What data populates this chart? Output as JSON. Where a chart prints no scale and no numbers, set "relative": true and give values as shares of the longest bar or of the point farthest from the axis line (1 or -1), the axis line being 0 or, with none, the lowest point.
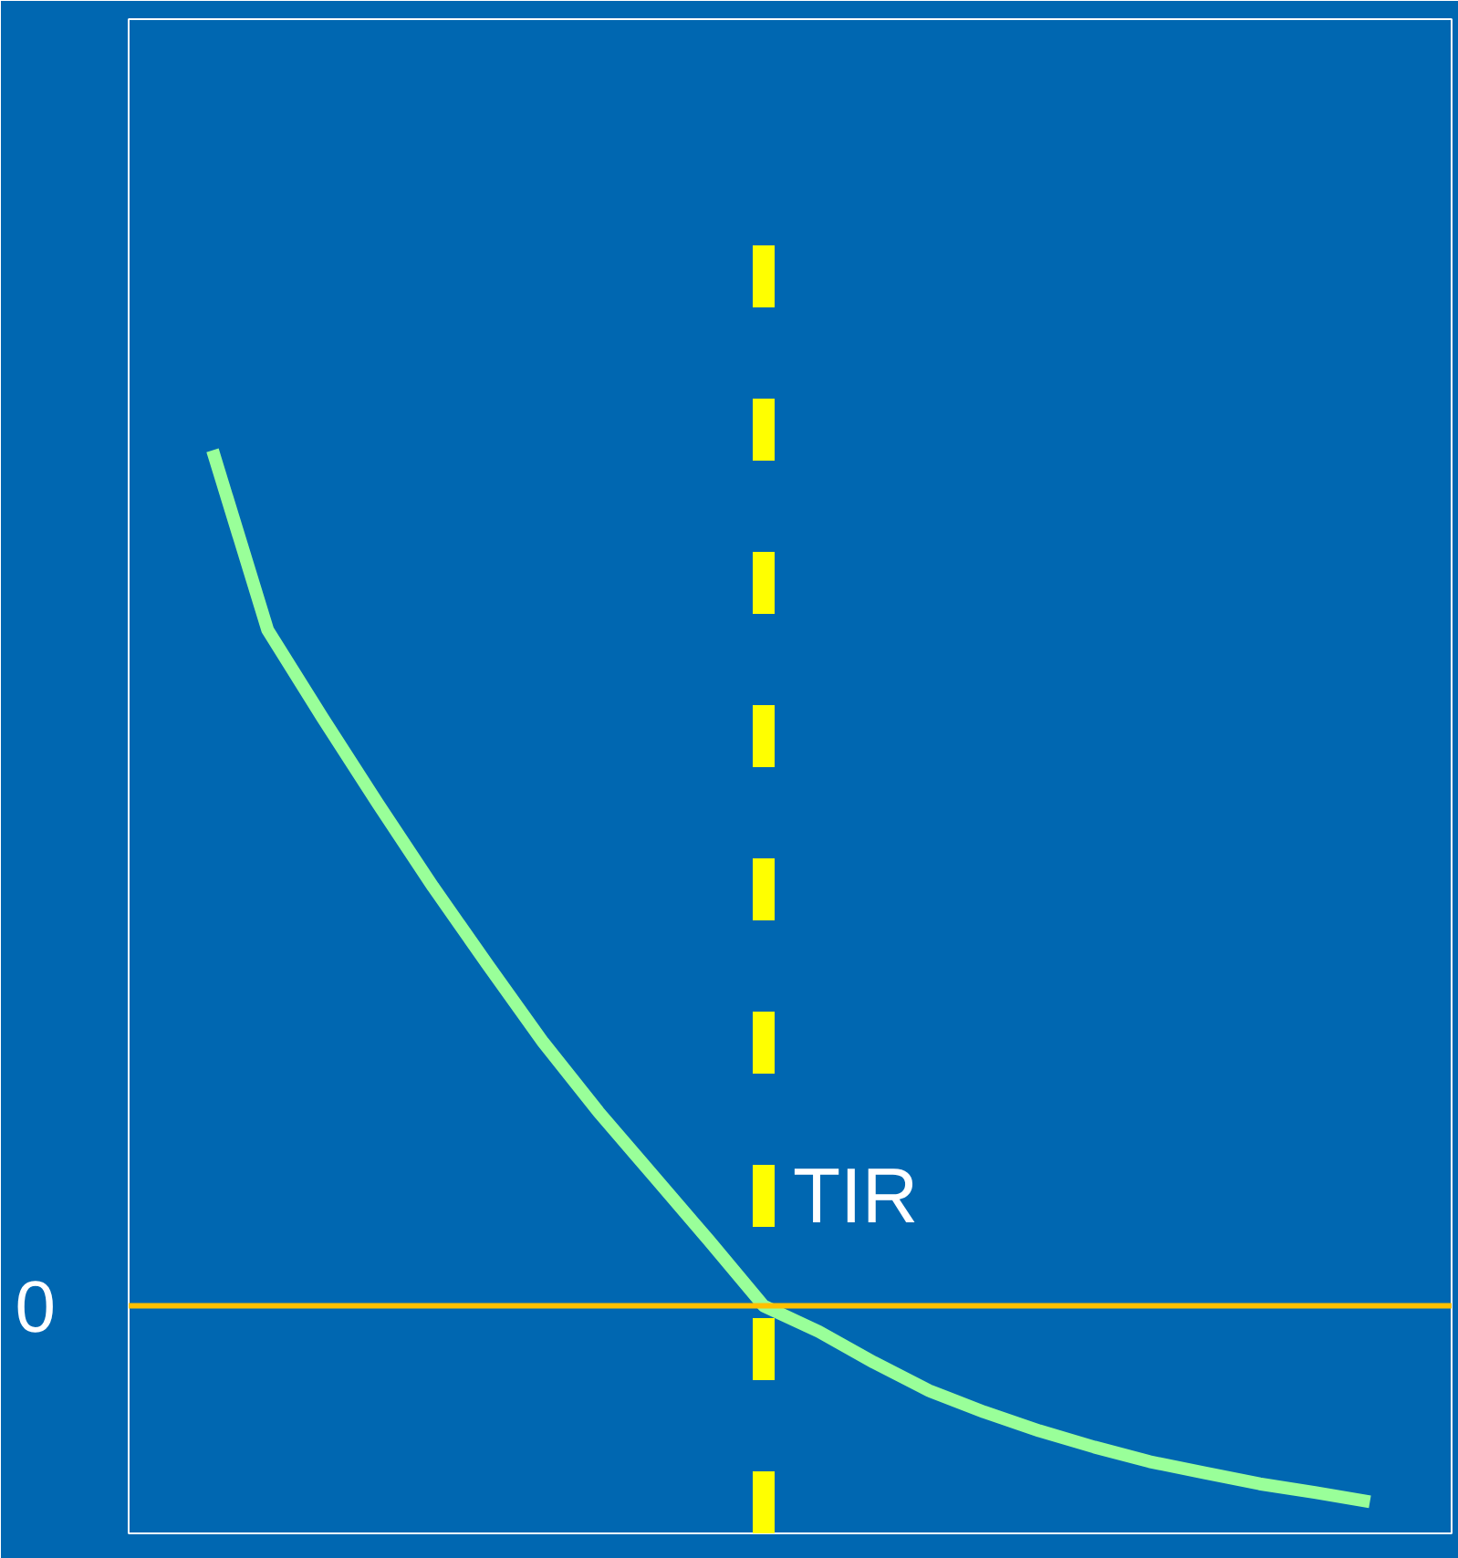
{
  "chart_data": {
    "type": "line",
    "relative": true,
    "categories": [
      null,
      null,
      null,
      null,
      null,
      null,
      null,
      null,
      null,
      null,
      null,
      null,
      null,
      null,
      null,
      null,
      null,
      null,
      null,
      null,
      null,
      null
    ],
    "series": [
      {
        "color": "#99ff99",
        "values": [
          1.0,
          0.79,
          0.687,
          0.587,
          0.49,
          0.398,
          0.308,
          0.227,
          0.152,
          0.077,
          0.0,
          -0.03,
          -0.066,
          -0.099,
          -0.124,
          -0.146,
          -0.165,
          -0.182,
          -0.195,
          -0.208,
          -0.218,
          -0.229
        ]
      }
    ],
    "ref_lines": [
      {
        "axis": "y",
        "value": 0,
        "label": "0",
        "color": "#ffc000"
      }
    ],
    "annotations": [
      "TIR"
    ]
  }
}
